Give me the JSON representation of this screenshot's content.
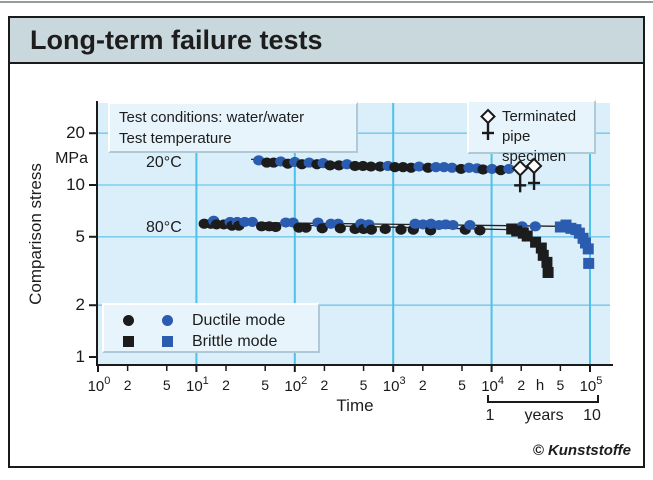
{
  "window": {
    "title": "Long-term failure tests",
    "credit": "© Kunststoffe"
  },
  "colors": {
    "title_bar_bg": "#c9d8dc",
    "plot_bg": "#dbeffa",
    "grid_major": "#4fc0e8",
    "grid_minor": "#7fcdec",
    "legend_bg": "#e7f4fc",
    "axis": "#1a1a1a",
    "point_black": "#1c1c1c",
    "point_blue": "#2b5cb0",
    "trend_line": "#222222"
  },
  "chart_data": {
    "type": "scatter",
    "title": "Long-term failure tests",
    "xlabel": "Time",
    "x_unit": "h",
    "ylabel": "Comparison stress",
    "y_unit": "MPa",
    "x_scale": "log",
    "y_scale": "log",
    "xlim": [
      1,
      100000
    ],
    "ylim": [
      1,
      30
    ],
    "x_decade_exponents": [
      0,
      1,
      2,
      3,
      4,
      5
    ],
    "x_minor_ticks": [
      2,
      5
    ],
    "y_ticks": [
      20,
      10,
      5,
      2,
      1
    ],
    "grid_horizontal_at": [
      20,
      10,
      5,
      2
    ],
    "years_bracket": {
      "start": "1",
      "unit": "years",
      "end": "10"
    },
    "annotations": {
      "test_conditions": "Test conditions: water/water",
      "test_temperature": "Test temperature",
      "temp_20": "20°C",
      "temp_80": "80°C",
      "terminated_line1": "Terminated",
      "terminated_line2": "pipe specimen"
    },
    "legend": [
      {
        "label": "Ductile mode",
        "marker": "circle"
      },
      {
        "label": "Brittle mode",
        "marker": "square"
      }
    ],
    "series": [
      {
        "name": "20°C ductile",
        "marker": "circle",
        "points": [
          [
            43,
            13.9,
            "b"
          ],
          [
            52,
            13.5,
            "k"
          ],
          [
            61,
            13.5,
            "k"
          ],
          [
            72,
            13.7,
            "b"
          ],
          [
            85,
            13.3,
            "k"
          ],
          [
            100,
            13.6,
            "b"
          ],
          [
            118,
            13.2,
            "k"
          ],
          [
            140,
            13.5,
            "b"
          ],
          [
            168,
            13.2,
            "k"
          ],
          [
            194,
            13.4,
            "b"
          ],
          [
            228,
            13.0,
            "k"
          ],
          [
            281,
            13.0,
            "k"
          ],
          [
            339,
            13.2,
            "b"
          ],
          [
            409,
            12.9,
            "k"
          ],
          [
            493,
            12.9,
            "k"
          ],
          [
            594,
            12.8,
            "k"
          ],
          [
            734,
            12.8,
            "k"
          ],
          [
            885,
            12.9,
            "b"
          ],
          [
            1040,
            12.7,
            "k"
          ],
          [
            1260,
            12.7,
            "k"
          ],
          [
            1520,
            12.6,
            "k"
          ],
          [
            1830,
            12.8,
            "b"
          ],
          [
            2260,
            12.6,
            "k"
          ],
          [
            2720,
            12.7,
            "b"
          ],
          [
            3280,
            12.7,
            "b"
          ],
          [
            3960,
            12.6,
            "b"
          ],
          [
            4890,
            12.4,
            "k"
          ],
          [
            5890,
            12.6,
            "b"
          ],
          [
            7110,
            12.5,
            "b"
          ],
          [
            8180,
            12.3,
            "k"
          ],
          [
            10100,
            12.4,
            "b"
          ],
          [
            12400,
            12.2,
            "k"
          ],
          [
            15000,
            12.4,
            "b"
          ]
        ]
      },
      {
        "name": "80°C ductile",
        "marker": "circle",
        "points": [
          [
            12,
            5.95,
            "k"
          ],
          [
            14,
            5.95,
            "k"
          ],
          [
            15,
            6.2,
            "b"
          ],
          [
            16,
            5.9,
            "k"
          ],
          [
            19,
            5.9,
            "k"
          ],
          [
            22,
            6.1,
            "b"
          ],
          [
            23,
            5.8,
            "k"
          ],
          [
            26,
            6.1,
            "b"
          ],
          [
            27,
            5.8,
            "k"
          ],
          [
            31,
            6.1,
            "b"
          ],
          [
            37,
            6.1,
            "b"
          ],
          [
            46,
            5.75,
            "k"
          ],
          [
            55,
            5.75,
            "k"
          ],
          [
            64,
            5.7,
            "k"
          ],
          [
            81,
            6.05,
            "b"
          ],
          [
            96,
            6.05,
            "b"
          ],
          [
            110,
            5.65,
            "k"
          ],
          [
            130,
            5.65,
            "k"
          ],
          [
            172,
            6.05,
            "b"
          ],
          [
            190,
            5.6,
            "k"
          ],
          [
            233,
            5.95,
            "b"
          ],
          [
            276,
            5.95,
            "b"
          ],
          [
            290,
            5.6,
            "k"
          ],
          [
            410,
            5.55,
            "k"
          ],
          [
            470,
            5.95,
            "b"
          ],
          [
            500,
            5.55,
            "k"
          ],
          [
            565,
            5.9,
            "b"
          ],
          [
            600,
            5.5,
            "k"
          ],
          [
            830,
            5.55,
            "k"
          ],
          [
            1200,
            5.5,
            "k"
          ],
          [
            1600,
            5.5,
            "k"
          ],
          [
            1670,
            5.95,
            "b"
          ],
          [
            2010,
            5.9,
            "b"
          ],
          [
            2400,
            5.45,
            "k"
          ],
          [
            2420,
            5.95,
            "b"
          ],
          [
            2920,
            5.85,
            "b"
          ],
          [
            3410,
            5.9,
            "b"
          ],
          [
            4050,
            5.85,
            "b"
          ],
          [
            5400,
            5.5,
            "k"
          ],
          [
            6020,
            5.85,
            "b"
          ],
          [
            7600,
            5.45,
            "k"
          ],
          [
            20400,
            5.75,
            "b"
          ],
          [
            27800,
            5.75,
            "b"
          ]
        ]
      },
      {
        "name": "80°C brittle black",
        "marker": "square",
        "color": "k",
        "points": [
          [
            16000,
            5.55
          ],
          [
            18000,
            5.4
          ],
          [
            21000,
            5.25
          ],
          [
            23000,
            5.05
          ],
          [
            28000,
            4.65
          ],
          [
            32000,
            4.3
          ],
          [
            33500,
            3.9
          ],
          [
            36500,
            3.55
          ],
          [
            37500,
            3.1
          ]
        ]
      },
      {
        "name": "80°C brittle blue",
        "marker": "square",
        "color": "b",
        "points": [
          [
            50000,
            5.7
          ],
          [
            57000,
            5.85
          ],
          [
            64000,
            5.6
          ],
          [
            72000,
            5.5
          ],
          [
            78000,
            5.25
          ],
          [
            85000,
            4.9
          ],
          [
            90000,
            4.6
          ],
          [
            96000,
            4.25
          ],
          [
            97000,
            3.5
          ]
        ]
      },
      {
        "name": "20°C terminated",
        "marker": "terminated",
        "points": [
          [
            19500,
            12.5
          ],
          [
            27000,
            12.9
          ]
        ]
      }
    ],
    "trend_lines": [
      {
        "series": "20°C",
        "from": [
          36,
          14.1
        ],
        "to": [
          16000,
          12.3
        ]
      },
      {
        "series": "80°C upper",
        "from": [
          11,
          6.1
        ],
        "to": [
          50000,
          5.75
        ]
      },
      {
        "series": "80°C lower",
        "from": [
          11,
          6.0
        ],
        "to": [
          16000,
          5.5
        ]
      }
    ]
  }
}
